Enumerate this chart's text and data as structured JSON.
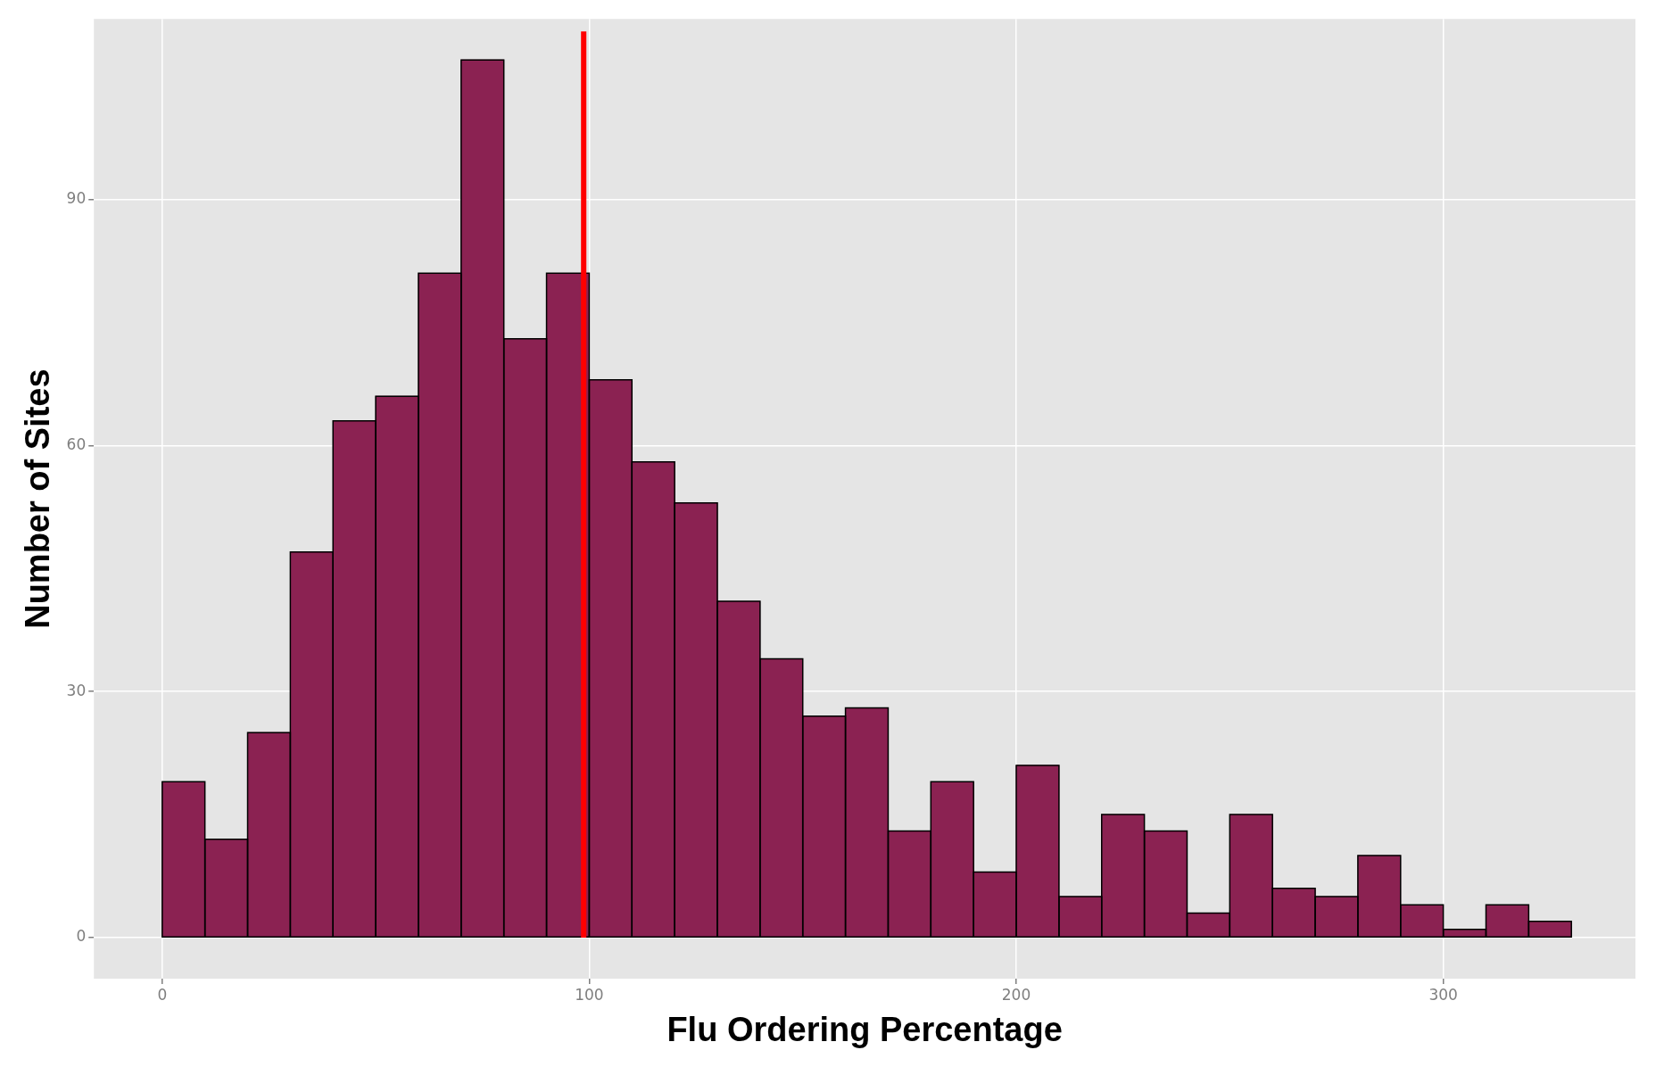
{
  "chart_data": {
    "type": "histogram",
    "xlabel": "Flu Ordering Percentage",
    "ylabel": "Number of Sites",
    "bins": [
      0,
      10,
      20,
      30,
      40,
      50,
      60,
      70,
      80,
      90,
      100,
      110,
      120,
      130,
      140,
      150,
      160,
      170,
      180,
      190,
      200,
      210,
      220,
      230,
      240,
      250,
      260,
      270,
      280,
      290,
      300,
      310,
      320,
      330
    ],
    "values": [
      19,
      12,
      25,
      47,
      63,
      66,
      81,
      107,
      73,
      81,
      68,
      58,
      53,
      41,
      34,
      27,
      28,
      13,
      19,
      8,
      21,
      5,
      15,
      13,
      3,
      15,
      6,
      5,
      10,
      4,
      1,
      4,
      2
    ],
    "color": "#8b2252",
    "xlim": [
      -16,
      345
    ],
    "xticks": [
      0,
      100,
      200,
      300
    ],
    "ylim": [
      -5,
      112
    ],
    "yticks": [
      0,
      30,
      60,
      90
    ],
    "grid": true,
    "ref_lines": [
      {
        "axis": "x",
        "value": 98.7,
        "color": "#ff0000"
      }
    ]
  }
}
